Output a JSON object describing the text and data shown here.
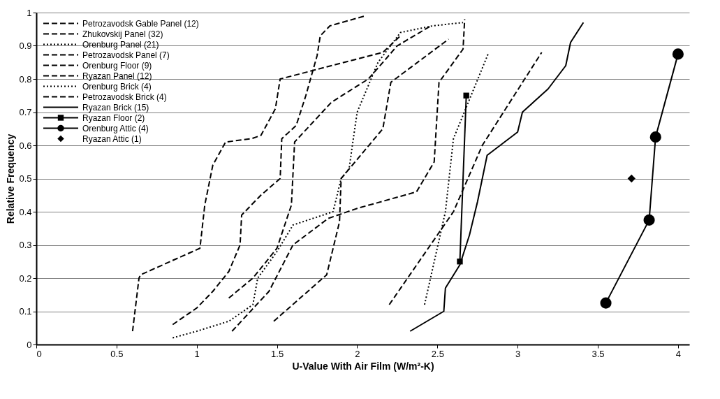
{
  "chart_data": {
    "type": "line",
    "xlabel": "U-Value With Air Film (W/m²-K)",
    "ylabel": "Relative Frequency",
    "xlim": [
      0,
      4.07
    ],
    "xticks": [
      0,
      0.5,
      1,
      1.5,
      2,
      2.5,
      3,
      3.5,
      4
    ],
    "ylim": [
      0,
      1
    ],
    "yticks": [
      0,
      0.1,
      0.2,
      0.3,
      0.4,
      0.5,
      0.6,
      0.7,
      0.8,
      0.9,
      1
    ],
    "grid": "y",
    "legend": "top left",
    "marker": "none",
    "series": [
      {
        "name": "Petrozavodsk Gable Panel (12)",
        "color": "#000000",
        "line_style": "dashed",
        "x": [
          0.6,
          0.64,
          0.65,
          1.02,
          1.05,
          1.1,
          1.18,
          1.34,
          1.4,
          1.49,
          1.52,
          2.16,
          2.27
        ],
        "values": [
          0.04,
          0.2,
          0.21,
          0.29,
          0.42,
          0.54,
          0.61,
          0.62,
          0.63,
          0.71,
          0.8,
          0.88,
          0.93
        ]
      },
      {
        "name": "Zhukovskij Panel (32)",
        "color": "#000000",
        "line_style": "dashed",
        "x": [
          0.85,
          1.0,
          1.1,
          1.2,
          1.27,
          1.28,
          1.4,
          1.52,
          1.53,
          1.62,
          1.68,
          1.75,
          1.77,
          1.83,
          2.05
        ],
        "values": [
          0.06,
          0.11,
          0.16,
          0.22,
          0.3,
          0.39,
          0.45,
          0.5,
          0.62,
          0.66,
          0.75,
          0.87,
          0.93,
          0.96,
          0.99
        ]
      },
      {
        "name": "Orenburg Panel (21)",
        "color": "#000000",
        "line_style": "dotted",
        "x": [
          0.85,
          1.0,
          1.2,
          1.35,
          1.38,
          1.5,
          1.6,
          1.85,
          1.9,
          1.95,
          1.97,
          2.0,
          2.13,
          2.27,
          2.47,
          2.66
        ],
        "values": [
          0.02,
          0.04,
          0.07,
          0.12,
          0.2,
          0.28,
          0.36,
          0.4,
          0.5,
          0.53,
          0.6,
          0.7,
          0.85,
          0.94,
          0.96,
          0.97
        ]
      },
      {
        "name": "Petrozavodsk Panel (7)",
        "color": "#000000",
        "line_style": "dashed",
        "x": [
          1.48,
          1.81,
          1.89,
          1.9,
          2.16,
          2.21,
          2.57
        ],
        "values": [
          0.07,
          0.21,
          0.37,
          0.5,
          0.65,
          0.79,
          0.92
        ]
      },
      {
        "name": "Orenburg Floor (9)",
        "color": "#000000",
        "line_style": "dashed",
        "x": [
          1.22,
          1.45,
          1.6,
          1.82,
          2.0,
          2.37,
          2.48,
          2.51,
          2.66,
          2.67
        ],
        "values": [
          0.04,
          0.16,
          0.3,
          0.38,
          0.41,
          0.46,
          0.55,
          0.79,
          0.89,
          0.98
        ]
      },
      {
        "name": "Ryazan Panel (12)",
        "color": "#000000",
        "line_style": "dashed",
        "x": [
          1.2,
          1.35,
          1.5,
          1.59,
          1.61,
          1.84,
          2.07,
          2.25,
          2.46
        ],
        "values": [
          0.14,
          0.2,
          0.29,
          0.42,
          0.61,
          0.73,
          0.8,
          0.9,
          0.96
        ]
      },
      {
        "name": "Orenburg Brick (4)",
        "color": "#000000",
        "line_style": "dotted",
        "x": [
          2.42,
          2.55,
          2.6,
          2.82
        ],
        "values": [
          0.12,
          0.4,
          0.62,
          0.88
        ]
      },
      {
        "name": "Petrozavodsk Brick (4)",
        "color": "#000000",
        "line_style": "dashed",
        "x": [
          2.2,
          2.6,
          2.78,
          3.15
        ],
        "values": [
          0.12,
          0.4,
          0.6,
          0.88
        ]
      },
      {
        "name": "Ryazan Brick (15)",
        "color": "#000000",
        "line_style": "solid",
        "x": [
          2.33,
          2.54,
          2.55,
          2.64,
          2.7,
          2.75,
          2.78,
          2.81,
          3.0,
          3.03,
          3.19,
          3.3,
          3.33,
          3.41
        ],
        "values": [
          0.04,
          0.1,
          0.17,
          0.24,
          0.33,
          0.43,
          0.5,
          0.57,
          0.64,
          0.7,
          0.77,
          0.84,
          0.91,
          0.97
        ]
      },
      {
        "name": "Ryazan Floor (2)",
        "color": "#000000",
        "line_style": "solid",
        "marker": "square",
        "x": [
          2.64,
          2.68
        ],
        "values": [
          0.25,
          0.75
        ]
      },
      {
        "name": "Orenburg Attic (4)",
        "color": "#000000",
        "line_style": "solid",
        "marker": "circle",
        "x": [
          3.55,
          3.82,
          3.86,
          4.0
        ],
        "values": [
          0.125,
          0.375,
          0.625,
          0.875
        ]
      },
      {
        "name": "Ryazan Attic (1)",
        "color": "#000000",
        "type": "scatter",
        "marker": "diamond",
        "x": [
          3.71
        ],
        "values": [
          0.5
        ]
      }
    ]
  }
}
